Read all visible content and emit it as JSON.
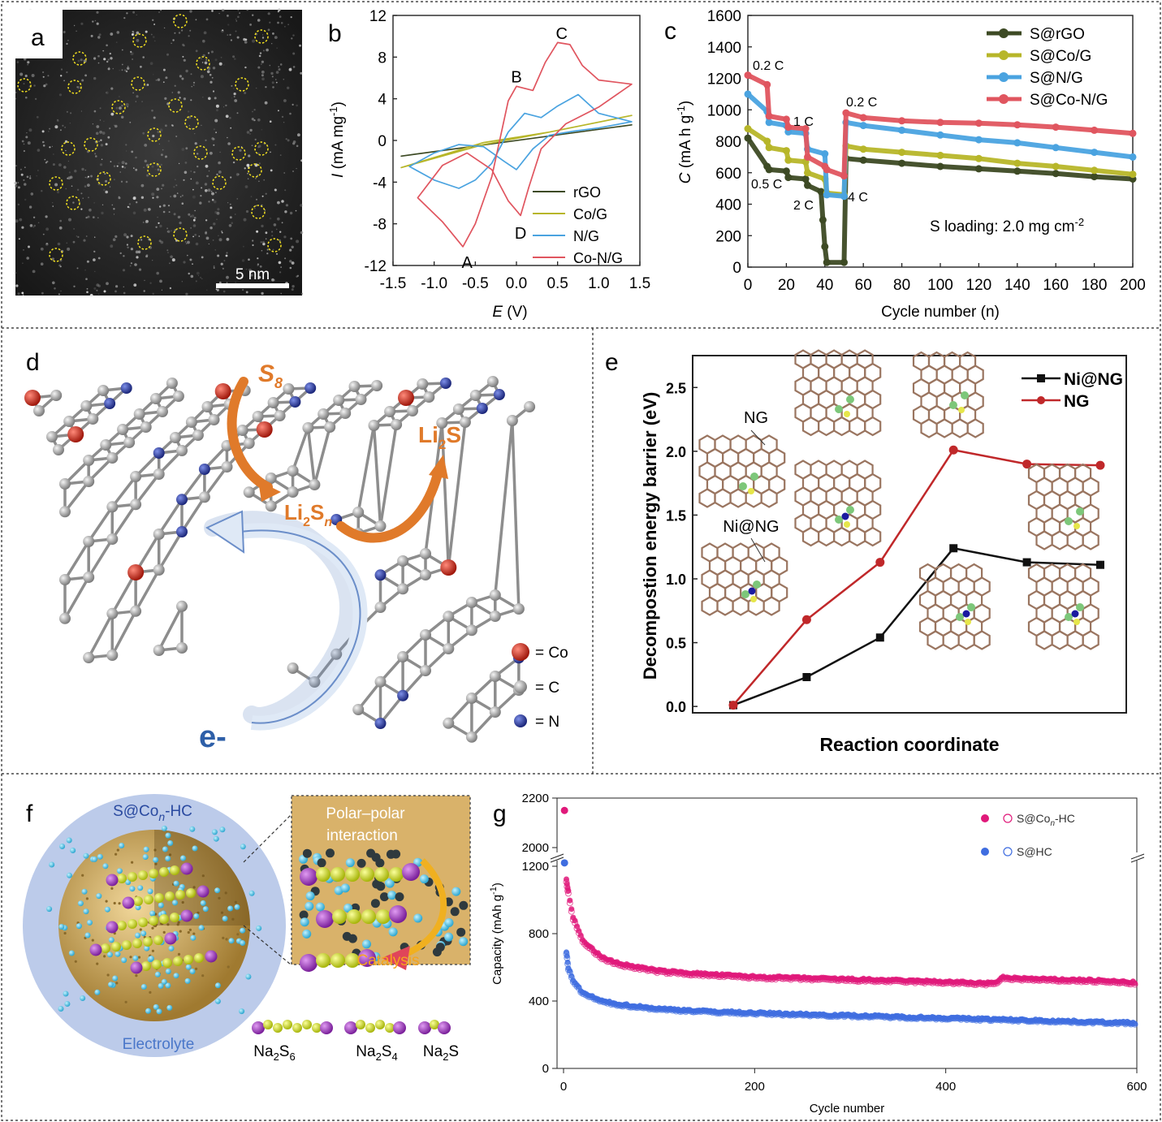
{
  "panels": {
    "a": "a",
    "b": "b",
    "c": "c",
    "d": "d",
    "e": "e",
    "f": "f",
    "g": "g"
  },
  "panel_a": {
    "scale_bar": "5 nm"
  },
  "chart_data": [
    {
      "panel": "b",
      "type": "line",
      "xlabel": "E (V)",
      "ylabel": "I (mA mg-1)",
      "xlim": [
        -1.5,
        1.5
      ],
      "ylim": [
        -12,
        12
      ],
      "xticks": [
        "-1.5",
        "-1.0",
        "-0.5",
        "0.0",
        "0.5",
        "1.0",
        "1.5"
      ],
      "yticks": [
        "12",
        "8",
        "4",
        "0",
        "-4",
        "-8",
        "-12"
      ],
      "annotations": [
        "A",
        "B",
        "C",
        "D"
      ],
      "series": [
        {
          "name": "rGO",
          "color": "#3d4a24",
          "x": [
            -1.4,
            1.4,
            -1.4
          ],
          "y": [
            -1.5,
            1.5,
            -1.5
          ]
        },
        {
          "name": "Co/G",
          "color": "#b7b629",
          "x": [
            -1.4,
            -0.4,
            0.4,
            1.4,
            0.4,
            -0.4,
            -1.4
          ],
          "y": [
            -2.6,
            -0.4,
            0.8,
            2.4,
            0.8,
            -0.2,
            -2.6
          ]
        },
        {
          "name": "N/G",
          "color": "#4aa3e0",
          "x": [
            -1.3,
            -1.0,
            -0.7,
            -0.5,
            -0.3,
            -0.1,
            0.1,
            0.3,
            0.5,
            0.75,
            1.0,
            1.4,
            1.0,
            0.7,
            0.4,
            0.2,
            0.0,
            -0.15,
            -0.4,
            -0.7,
            -1.0,
            -1.3
          ],
          "y": [
            -2.5,
            -3.8,
            -4.6,
            -3.8,
            -2.2,
            0.8,
            2.6,
            2.2,
            3.3,
            4.4,
            2.6,
            1.8,
            1.2,
            0.9,
            0.5,
            -0.8,
            -2.8,
            -2.0,
            -0.6,
            -0.4,
            -1.2,
            -2.5
          ]
        },
        {
          "name": "Co-N/G",
          "color": "#e0555f",
          "x": [
            -1.2,
            -0.9,
            -0.65,
            -0.5,
            -0.3,
            -0.1,
            0.0,
            0.2,
            0.35,
            0.5,
            0.65,
            0.8,
            1.0,
            1.4,
            1.0,
            0.6,
            0.3,
            0.15,
            0.05,
            -0.1,
            -0.3,
            -0.6,
            -0.9,
            -1.2
          ],
          "y": [
            -5.5,
            -7.8,
            -10.2,
            -8.0,
            -3.5,
            3.8,
            5.2,
            4.8,
            7.5,
            9.4,
            9.2,
            7.2,
            5.8,
            5.4,
            3.2,
            1.6,
            -0.8,
            -4.5,
            -7.2,
            -5.8,
            -2.8,
            -1.2,
            -2.4,
            -5.5
          ]
        }
      ]
    },
    {
      "panel": "c",
      "type": "line",
      "xlabel": "Cycle number (n)",
      "ylabel": "C (mA h g-1)",
      "xlim": [
        0,
        200
      ],
      "ylim": [
        0,
        1600
      ],
      "xticks": [
        "0",
        "20",
        "40",
        "60",
        "80",
        "100",
        "120",
        "140",
        "160",
        "180",
        "200"
      ],
      "yticks": [
        "1600",
        "1400",
        "1200",
        "1000",
        "800",
        "600",
        "400",
        "200",
        "0"
      ],
      "annotations": [
        "0.2 C",
        "1 C",
        "0.5 C",
        "2 C",
        "4 C",
        "0.2 C",
        "S loading: 2.0 mg cm-2"
      ],
      "series": [
        {
          "name": "S@rGO",
          "color": "#3d4a24",
          "x": [
            0,
            10,
            11,
            20,
            21,
            30,
            31,
            38,
            39,
            40,
            41,
            50,
            51,
            60,
            80,
            100,
            120,
            140,
            160,
            180,
            200
          ],
          "y": [
            820,
            640,
            620,
            610,
            570,
            560,
            520,
            480,
            300,
            130,
            30,
            30,
            690,
            680,
            660,
            640,
            625,
            610,
            595,
            575,
            560
          ]
        },
        {
          "name": "S@Co/G",
          "color": "#b7b629",
          "x": [
            0,
            10,
            11,
            20,
            21,
            30,
            31,
            40,
            41,
            50,
            51,
            60,
            80,
            100,
            120,
            140,
            160,
            180,
            200
          ],
          "y": [
            880,
            800,
            760,
            740,
            680,
            670,
            600,
            560,
            470,
            460,
            770,
            750,
            730,
            710,
            690,
            660,
            640,
            615,
            590
          ]
        },
        {
          "name": "S@N/G",
          "color": "#4aa3e0",
          "x": [
            0,
            10,
            11,
            20,
            21,
            30,
            31,
            40,
            41,
            50,
            51,
            60,
            80,
            100,
            120,
            140,
            160,
            180,
            200
          ],
          "y": [
            1100,
            990,
            920,
            900,
            860,
            850,
            750,
            720,
            460,
            450,
            920,
            900,
            870,
            840,
            810,
            790,
            760,
            730,
            700
          ]
        },
        {
          "name": "S@Co-N/G",
          "color": "#e0555f",
          "x": [
            0,
            10,
            11,
            20,
            21,
            30,
            31,
            40,
            41,
            50,
            51,
            60,
            80,
            100,
            120,
            140,
            160,
            180,
            200
          ],
          "y": [
            1220,
            1160,
            960,
            940,
            890,
            880,
            700,
            640,
            620,
            580,
            980,
            950,
            930,
            920,
            915,
            905,
            890,
            870,
            850
          ]
        }
      ]
    },
    {
      "panel": "e",
      "type": "line",
      "xlabel": "Reaction coordinate",
      "ylabel": "Decompostion energy barrier (eV)",
      "ylim": [
        -0.05,
        2.75
      ],
      "yticks": [
        "2.5",
        "2.0",
        "1.5",
        "1.0",
        "0.5",
        "0.0"
      ],
      "structure_labels": [
        "NG",
        "Ni@NG"
      ],
      "series": [
        {
          "name": "Ni@NG",
          "color": "#111111",
          "x": [
            1,
            2,
            3,
            4,
            5,
            6
          ],
          "y": [
            0.01,
            0.23,
            0.54,
            1.24,
            1.13,
            1.11
          ]
        },
        {
          "name": "NG",
          "color": "#c0282a",
          "x": [
            1,
            2,
            3,
            4,
            5,
            6
          ],
          "y": [
            0.01,
            0.68,
            1.13,
            2.01,
            1.9,
            1.89
          ]
        }
      ]
    },
    {
      "panel": "g",
      "type": "scatter",
      "xlabel": "Cycle number",
      "ylabel": "Capacity (mAh g-1)",
      "xlim": [
        0,
        600
      ],
      "xticks": [
        "0",
        "200",
        "400",
        "600"
      ],
      "yticks": [
        "2200",
        "2000",
        "1200",
        "800",
        "400",
        "0"
      ],
      "series": [
        {
          "name": "S@Con-HC",
          "color": "#e0197a",
          "x": [
            1,
            3,
            5,
            10,
            20,
            40,
            60,
            100,
            150,
            200,
            300,
            400,
            450,
            460,
            500,
            550,
            600
          ],
          "y": [
            2150,
            1120,
            1050,
            900,
            760,
            660,
            620,
            580,
            560,
            545,
            530,
            515,
            505,
            540,
            530,
            525,
            510
          ]
        },
        {
          "name": "S@HC",
          "color": "#3f6de0",
          "x": [
            1,
            3,
            5,
            10,
            20,
            40,
            60,
            100,
            150,
            200,
            300,
            400,
            500,
            600
          ],
          "y": [
            1220,
            690,
            600,
            520,
            450,
            400,
            380,
            355,
            340,
            330,
            315,
            300,
            285,
            270
          ]
        }
      ]
    }
  ],
  "panel_d": {
    "s8": "S8",
    "li2s": "Li2S",
    "li2sn": "Li2Sn",
    "electron": "e-",
    "legend": [
      "= Co",
      "= C",
      "= N"
    ]
  },
  "panel_f": {
    "title": "S@Con-HC",
    "inset_label_1": "Polar–polar",
    "inset_label_2": "interaction",
    "catalysis": "Catalysis",
    "electrolyte": "Electrolyte",
    "molecules": [
      "Na2S6",
      "Na2S4",
      "Na2S"
    ]
  },
  "colors": {
    "co": "#c83a2a",
    "c": "#9a9a9a",
    "n": "#2a3fa0",
    "arrow_orange": "#e07a2a",
    "arrow_blue": "#dfe9f6",
    "sphere": "#c9a15a",
    "electrolyte": "#a7b8e0"
  }
}
